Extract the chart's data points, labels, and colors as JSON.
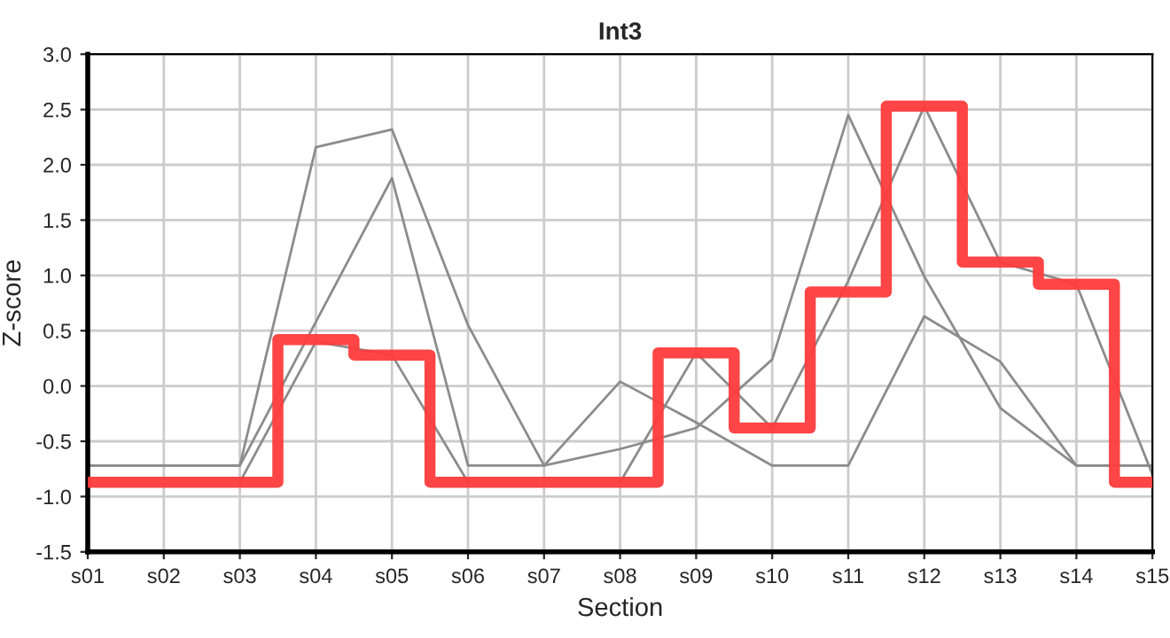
{
  "chart_data": {
    "type": "line",
    "title": "Int3",
    "xlabel": "Section",
    "ylabel": "Z-score",
    "categories": [
      "s01",
      "s02",
      "s03",
      "s04",
      "s05",
      "s06",
      "s07",
      "s08",
      "s09",
      "s10",
      "s11",
      "s12",
      "s13",
      "s14",
      "s15"
    ],
    "series": [
      {
        "color": "#8c8c8c",
        "values": [
          -0.72,
          -0.72,
          -0.72,
          2.16,
          2.32,
          0.55,
          -0.72,
          0.04,
          -0.33,
          -0.72,
          -0.72,
          0.63,
          0.22,
          -0.72,
          -0.72
        ]
      },
      {
        "color": "#8c8c8c",
        "values": [
          -0.72,
          -0.72,
          -0.72,
          0.58,
          1.88,
          -0.72,
          -0.72,
          -0.57,
          -0.38,
          0.24,
          2.45,
          0.99,
          -0.2,
          -0.72,
          -0.72
        ]
      },
      {
        "color": "#8c8c8c",
        "values": [
          null,
          null,
          -0.87,
          0.4,
          0.28,
          -0.87,
          null,
          -0.87,
          0.3,
          -0.38,
          0.95,
          2.53,
          1.12,
          0.92,
          -0.8
        ]
      },
      {
        "type": "step",
        "color": "#ff3b3b",
        "values": [
          -0.87,
          -0.87,
          -0.87,
          0.42,
          0.28,
          -0.87,
          -0.87,
          -0.87,
          0.3,
          -0.38,
          0.85,
          2.53,
          1.12,
          0.92,
          -0.87
        ]
      }
    ],
    "ylim": [
      -1.5,
      3.0
    ],
    "yticks": [
      {
        "value": -1.5,
        "label": "-1.5"
      },
      {
        "value": -1.0,
        "label": "-1.0"
      },
      {
        "value": -0.5,
        "label": "-0.5"
      },
      {
        "value": 0.0,
        "label": "0.0"
      },
      {
        "value": 0.5,
        "label": "0.5"
      },
      {
        "value": 1.0,
        "label": "1.0"
      },
      {
        "value": 1.5,
        "label": "1.5"
      },
      {
        "value": 2.0,
        "label": "2.0"
      },
      {
        "value": 2.5,
        "label": "2.5"
      },
      {
        "value": 3.0,
        "label": "3.0"
      }
    ],
    "grid": true
  }
}
